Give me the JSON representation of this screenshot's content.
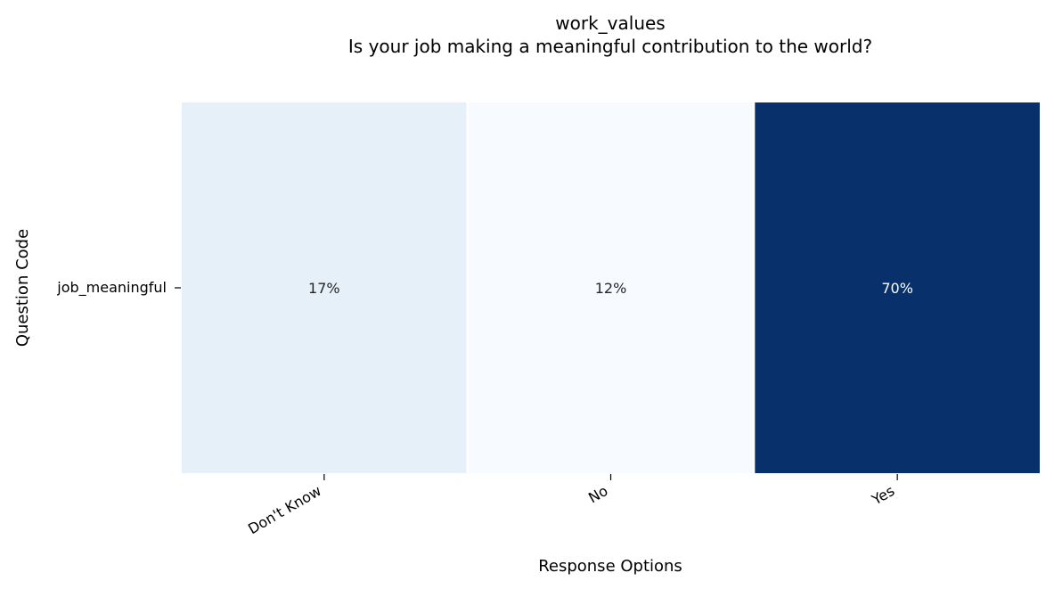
{
  "chart_data": {
    "type": "heatmap",
    "title": "work_values",
    "subtitle": "Is your job making a meaningful contribution to the world?",
    "xlabel": "Response Options",
    "ylabel": "Question Code",
    "x_categories": [
      "Don't Know",
      "No",
      "Yes"
    ],
    "y_categories": [
      "job_meaningful"
    ],
    "values": [
      [
        17,
        12,
        70
      ]
    ],
    "cell_labels": [
      [
        "17%",
        "12%",
        "70%"
      ]
    ],
    "value_unit": "%",
    "colormap": "Blues",
    "colors": {
      "low": "#f7fbff",
      "high": "#08306b",
      "text_light": "#ffffff",
      "text_dark": "#262626"
    },
    "colorbar": false,
    "grid": false
  }
}
